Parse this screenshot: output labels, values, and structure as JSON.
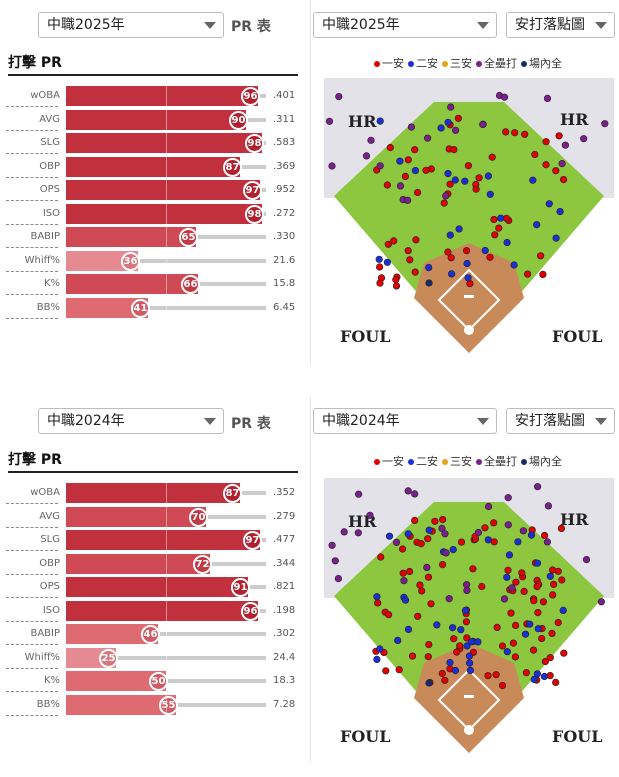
{
  "panels": [
    {
      "season_select": "中職2025年",
      "pr_label": "PR 表",
      "batting_title": "打擊 PR",
      "spray_season_select": "中職2025年",
      "chart_select": "安打落點圖",
      "legend": [
        "一安",
        "二安",
        "三安",
        "全壘打",
        "場內全"
      ],
      "field_labels": {
        "hr_left": "HR",
        "hr_right": "HR",
        "foul_left": "FOUL",
        "foul_right": "FOUL"
      },
      "stats": [
        {
          "label": "wOBA",
          "pr": "96",
          "value": ".401",
          "pr_num": 96
        },
        {
          "label": "AVG",
          "pr": "90",
          "value": ".311",
          "pr_num": 90
        },
        {
          "label": "SLG",
          "pr": "98",
          "value": ".583",
          "pr_num": 98
        },
        {
          "label": "OBP",
          "pr": "87",
          "value": ".369",
          "pr_num": 87
        },
        {
          "label": "OPS",
          "pr": "97",
          "value": ".952",
          "pr_num": 97
        },
        {
          "label": "ISO",
          "pr": "98",
          "value": ".272",
          "pr_num": 98
        },
        {
          "label": "BABIP",
          "pr": "65",
          "value": ".330",
          "pr_num": 65
        },
        {
          "label": "Whiff%",
          "pr": "36",
          "value": "21.6",
          "pr_num": 36
        },
        {
          "label": "K%",
          "pr": "66",
          "value": "15.8",
          "pr_num": 66
        },
        {
          "label": "BB%",
          "pr": "41",
          "value": "6.45",
          "pr_num": 41
        }
      ]
    },
    {
      "season_select": "中職2024年",
      "pr_label": "PR 表",
      "batting_title": "打擊 PR",
      "spray_season_select": "中職2024年",
      "chart_select": "安打落點圖",
      "legend": [
        "一安",
        "二安",
        "三安",
        "全壘打",
        "場內全"
      ],
      "field_labels": {
        "hr_left": "HR",
        "hr_right": "HR",
        "foul_left": "FOUL",
        "foul_right": "FOUL"
      },
      "stats": [
        {
          "label": "wOBA",
          "pr": "87",
          "value": ".352",
          "pr_num": 87
        },
        {
          "label": "AVG",
          "pr": "70",
          "value": ".279",
          "pr_num": 70
        },
        {
          "label": "SLG",
          "pr": "97",
          "value": ".477",
          "pr_num": 97
        },
        {
          "label": "OBP",
          "pr": "72",
          "value": ".344",
          "pr_num": 72
        },
        {
          "label": "OPS",
          "pr": "91",
          "value": ".821",
          "pr_num": 91
        },
        {
          "label": "ISO",
          "pr": "96",
          "value": ".198",
          "pr_num": 96
        },
        {
          "label": "BABIP",
          "pr": "46",
          "value": ".302",
          "pr_num": 46
        },
        {
          "label": "Whiff%",
          "pr": "25",
          "value": "24.4",
          "pr_num": 25
        },
        {
          "label": "K%",
          "pr": "50",
          "value": "18.3",
          "pr_num": 50
        },
        {
          "label": "BB%",
          "pr": "55",
          "value": "7.28",
          "pr_num": 55
        }
      ]
    }
  ],
  "colors": {
    "legend": [
      "#e00000",
      "#1a2fd6",
      "#e8a21a",
      "#7b1f8c",
      "#1b2a6b"
    ],
    "grass": "#8dc63f",
    "dirt": "#c98a5a",
    "foul_area": "#e2e2e8"
  }
}
